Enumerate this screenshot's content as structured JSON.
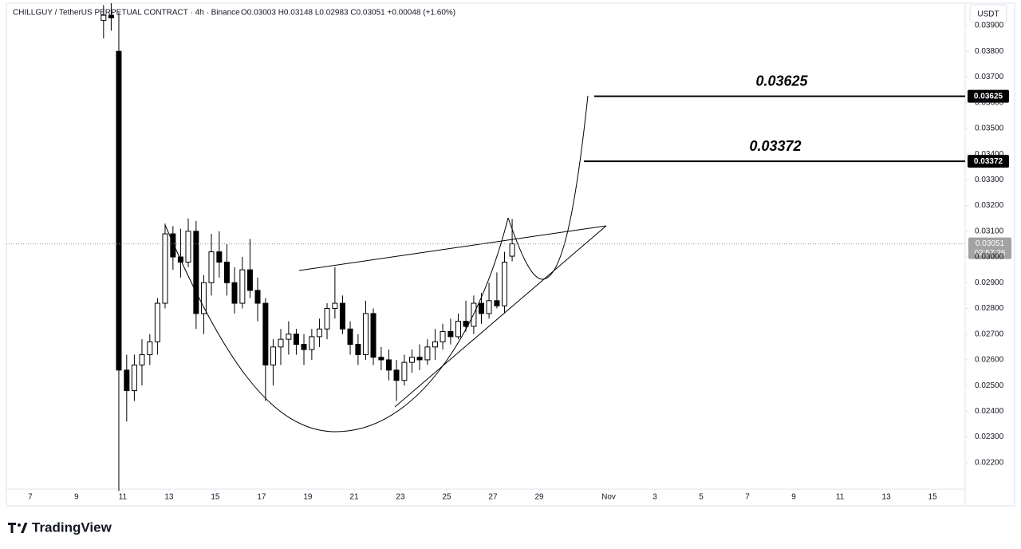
{
  "chart_data": {
    "type": "candlestick",
    "title": "CHILLGUY / TetherUS PERPETUAL CONTRACT · 4h · Binance",
    "ohlc_legend": "O0.03003 H0.03148 L0.02983 C0.03051 +0.00048 (+1.60%)",
    "currency": "USDT",
    "brand": "TradingView",
    "up_color": "#ffffff",
    "down_color": "#000000",
    "x": [
      10.17,
      10.5,
      10.83,
      11.17,
      11.5,
      11.83,
      12.17,
      12.5,
      12.83,
      13.17,
      13.5,
      13.83,
      14.17,
      14.5,
      14.83,
      15.17,
      15.5,
      15.83,
      16.17,
      16.5,
      16.83,
      17.17,
      17.5,
      17.83,
      18.17,
      18.5,
      18.83,
      19.17,
      19.5,
      19.83,
      20.17,
      20.5,
      20.83,
      21.17,
      21.5,
      21.83,
      22.17,
      22.5,
      22.83,
      23.17,
      23.5,
      23.83,
      24.17,
      24.5,
      24.83,
      25.17,
      25.5,
      25.83,
      26.17,
      26.5,
      26.83,
      27.17,
      27.5,
      27.83
    ],
    "open": [
      0.0392,
      0.0394,
      0.038,
      0.0256,
      0.0248,
      0.0258,
      0.0262,
      0.0267,
      0.0282,
      0.0309,
      0.03,
      0.0298,
      0.031,
      0.0278,
      0.029,
      0.0302,
      0.0298,
      0.029,
      0.0282,
      0.0295,
      0.0287,
      0.0282,
      0.0258,
      0.0265,
      0.0268,
      0.027,
      0.0266,
      0.0264,
      0.0269,
      0.0272,
      0.028,
      0.0282,
      0.0272,
      0.0266,
      0.0262,
      0.0278,
      0.0261,
      0.026,
      0.0256,
      0.0252,
      0.0259,
      0.0261,
      0.026,
      0.0265,
      0.0267,
      0.0271,
      0.0269,
      0.0275,
      0.0273,
      0.0282,
      0.0278,
      0.0283,
      0.0281,
      0.03003
    ],
    "high": [
      0.0398,
      0.0399,
      0.0395,
      0.0262,
      0.0262,
      0.0268,
      0.027,
      0.0284,
      0.0313,
      0.0312,
      0.0311,
      0.0315,
      0.0314,
      0.0293,
      0.0309,
      0.031,
      0.0305,
      0.0296,
      0.03,
      0.0307,
      0.0292,
      0.0284,
      0.0268,
      0.0272,
      0.0275,
      0.0272,
      0.027,
      0.0272,
      0.0276,
      0.0282,
      0.0296,
      0.0285,
      0.0275,
      0.027,
      0.0283,
      0.028,
      0.0265,
      0.0264,
      0.026,
      0.0262,
      0.0264,
      0.0266,
      0.0268,
      0.0272,
      0.0274,
      0.0276,
      0.0278,
      0.0283,
      0.0285,
      0.0286,
      0.029,
      0.0294,
      0.0302,
      0.03148
    ],
    "low": [
      0.0385,
      0.0388,
      0.0209,
      0.0236,
      0.0244,
      0.025,
      0.0258,
      0.0262,
      0.028,
      0.0295,
      0.0292,
      0.0296,
      0.0272,
      0.027,
      0.0285,
      0.0292,
      0.0285,
      0.0278,
      0.028,
      0.0284,
      0.0275,
      0.0244,
      0.025,
      0.0258,
      0.0262,
      0.0262,
      0.0258,
      0.026,
      0.0265,
      0.0268,
      0.0276,
      0.027,
      0.0262,
      0.0258,
      0.026,
      0.0258,
      0.0256,
      0.0252,
      0.0244,
      0.025,
      0.0255,
      0.0256,
      0.0258,
      0.026,
      0.0264,
      0.0266,
      0.0268,
      0.0271,
      0.027,
      0.0274,
      0.0276,
      0.028,
      0.0278,
      0.02983
    ],
    "close": [
      0.0394,
      0.0393,
      0.0256,
      0.0248,
      0.0258,
      0.0262,
      0.0267,
      0.0282,
      0.0309,
      0.03,
      0.0298,
      0.031,
      0.0278,
      0.029,
      0.0302,
      0.0298,
      0.029,
      0.0282,
      0.0295,
      0.0287,
      0.0282,
      0.0258,
      0.0265,
      0.0268,
      0.027,
      0.0266,
      0.0264,
      0.0269,
      0.0272,
      0.028,
      0.0282,
      0.0272,
      0.0266,
      0.0262,
      0.0278,
      0.0261,
      0.026,
      0.0256,
      0.0252,
      0.0259,
      0.0261,
      0.026,
      0.0265,
      0.0267,
      0.0271,
      0.0269,
      0.0275,
      0.0273,
      0.0282,
      0.0278,
      0.0283,
      0.0281,
      0.0298,
      0.03051
    ],
    "xlim": [
      5.97,
      47.41
    ],
    "xticks": [
      7,
      9,
      11,
      13,
      15,
      17,
      19,
      21,
      23,
      25,
      27,
      29,
      {
        "value": 32,
        "label": "Nov"
      },
      {
        "value": 34,
        "label": "3"
      },
      {
        "value": 36,
        "label": "5"
      },
      {
        "value": 38,
        "label": "7"
      },
      {
        "value": 40,
        "label": "9"
      },
      {
        "value": 42,
        "label": "11"
      },
      {
        "value": 44,
        "label": "13"
      },
      {
        "value": 46,
        "label": "15"
      }
    ],
    "ylim": [
      0.02097,
      0.03987
    ],
    "yticks": [
      {
        "value": 0.022,
        "label": "0.02200"
      },
      {
        "value": 0.023,
        "label": "0.02300"
      },
      {
        "value": 0.024,
        "label": "0.02400"
      },
      {
        "value": 0.025,
        "label": "0.02500"
      },
      {
        "value": 0.026,
        "label": "0.02600"
      },
      {
        "value": 0.027,
        "label": "0.02700"
      },
      {
        "value": 0.028,
        "label": "0.02800"
      },
      {
        "value": 0.029,
        "label": "0.02900"
      },
      {
        "value": 0.03,
        "label": "0.03000"
      },
      {
        "value": 0.031,
        "label": "0.03100"
      },
      {
        "value": 0.032,
        "label": "0.03200"
      },
      {
        "value": 0.033,
        "label": "0.03300"
      },
      {
        "value": 0.034,
        "label": "0.03400"
      },
      {
        "value": 0.035,
        "label": "0.03500"
      },
      {
        "value": 0.036,
        "label": "0.03600"
      },
      {
        "value": 0.037,
        "label": "0.03700"
      },
      {
        "value": 0.038,
        "label": "0.03800"
      },
      {
        "value": 0.039,
        "label": "0.03900"
      }
    ],
    "levels": [
      0.03625,
      0.03372
    ],
    "last_price": 0.03051,
    "countdown": "02:57:26"
  }
}
